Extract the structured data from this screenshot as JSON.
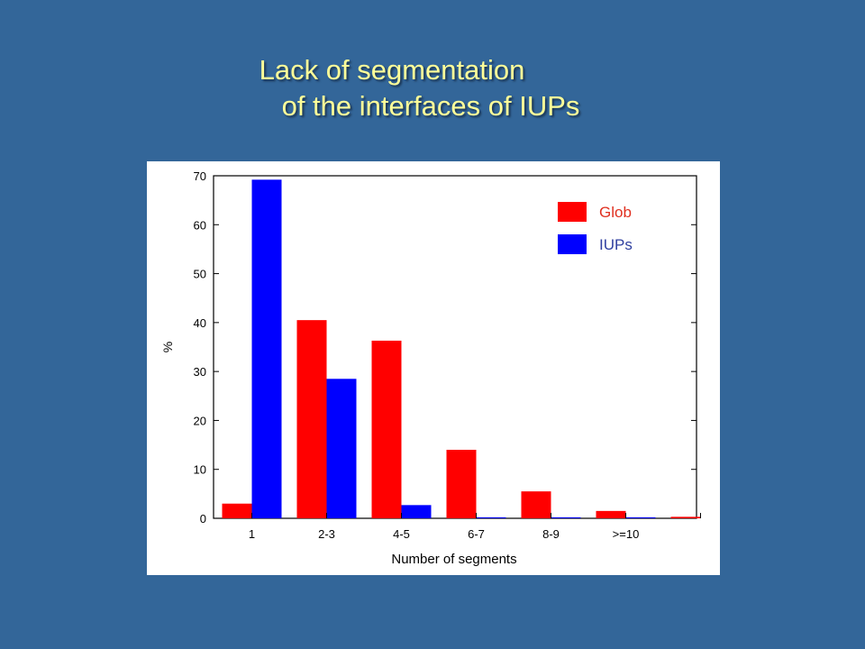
{
  "slide": {
    "title_line1": "Lack of segmentation",
    "title_line2": "of the interfaces of IUPs"
  },
  "chart_data": {
    "type": "bar",
    "title": "",
    "xlabel": "Number of segments",
    "ylabel": "%",
    "ylim": [
      0,
      70
    ],
    "yticks": [
      0,
      10,
      20,
      30,
      40,
      50,
      60,
      70
    ],
    "categories": [
      "1",
      "2-3",
      "4-5",
      "6-7",
      "8-9",
      ">=10",
      ""
    ],
    "series": [
      {
        "name": "Glob",
        "color": "#ff0000",
        "values": [
          3.0,
          40.5,
          36.3,
          14.0,
          5.5,
          1.5,
          0.3
        ]
      },
      {
        "name": "IUPs",
        "color": "#0000ff",
        "values": [
          69.2,
          28.5,
          2.7,
          0.2,
          0.2,
          0.2,
          0.0
        ]
      }
    ],
    "legend_position": "top-right",
    "grid": false
  }
}
